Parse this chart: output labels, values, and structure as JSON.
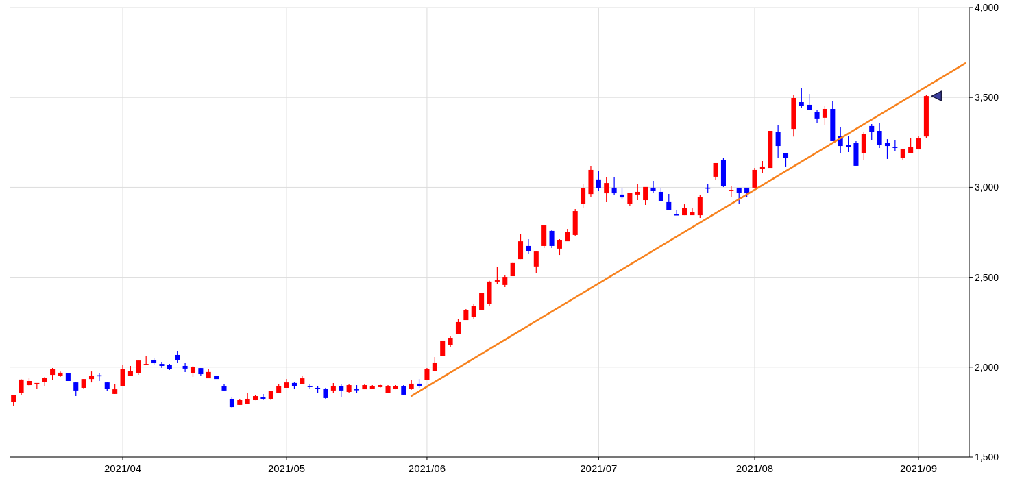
{
  "chart_data": {
    "type": "candlestick",
    "categories": [
      null,
      null,
      null,
      null,
      null,
      null,
      null,
      null,
      null,
      null,
      null,
      null,
      null,
      null,
      "2021/04",
      null,
      null,
      null,
      null,
      null,
      null,
      null,
      null,
      null,
      null,
      null,
      null,
      null,
      null,
      null,
      null,
      null,
      null,
      null,
      null,
      "2021/05",
      null,
      null,
      null,
      null,
      null,
      null,
      null,
      null,
      null,
      null,
      null,
      null,
      null,
      null,
      null,
      null,
      null,
      "2021/06",
      null,
      null,
      null,
      null,
      null,
      null,
      null,
      null,
      null,
      null,
      null,
      null,
      null,
      null,
      null,
      null,
      null,
      null,
      null,
      null,
      null,
      "2021/07",
      null,
      null,
      null,
      null,
      null,
      null,
      null,
      null,
      null,
      null,
      null,
      null,
      null,
      null,
      null,
      null,
      null,
      null,
      null,
      "2021/08",
      null,
      null,
      null,
      null,
      null,
      null,
      null,
      null,
      null,
      null,
      null,
      null,
      null,
      null,
      null,
      null,
      null,
      null,
      null,
      null,
      "2021/09",
      null,
      null,
      null,
      null,
      null,
      null
    ],
    "ohlc": [
      [
        1805,
        1845,
        1782,
        1843
      ],
      [
        1858,
        1933,
        1843,
        1931
      ],
      [
        1900,
        1938,
        1892,
        1923
      ],
      [
        1904,
        1912,
        1881,
        1912
      ],
      [
        1919,
        1946,
        1896,
        1942
      ],
      [
        1957,
        1995,
        1931,
        1988
      ],
      [
        1953,
        1975,
        1946,
        1969
      ],
      [
        1965,
        1969,
        1923,
        1923
      ],
      [
        1915,
        1915,
        1839,
        1870
      ],
      [
        1885,
        1934,
        1881,
        1934
      ],
      [
        1934,
        1976,
        1915,
        1950
      ],
      [
        1955,
        1969,
        1923,
        1950
      ],
      [
        1915,
        1919,
        1870,
        1881
      ],
      [
        1851,
        1904,
        1851,
        1877
      ],
      [
        1893,
        2011,
        1893,
        1988
      ],
      [
        1950,
        2007,
        1950,
        1980
      ],
      [
        1965,
        2037,
        1957,
        2037
      ],
      [
        2011,
        2060,
        2011,
        2018
      ],
      [
        2041,
        2052,
        2011,
        2022
      ],
      [
        2018,
        2030,
        1995,
        2007
      ],
      [
        2011,
        2018,
        1984,
        1988
      ],
      [
        2068,
        2091,
        2026,
        2041
      ],
      [
        2007,
        2026,
        1973,
        1992
      ],
      [
        1965,
        2007,
        1946,
        2003
      ],
      [
        1995,
        1995,
        1953,
        1961
      ],
      [
        1938,
        1991,
        1938,
        1973
      ],
      [
        1950,
        1950,
        1934,
        1934
      ],
      [
        1896,
        1904,
        1870,
        1870
      ],
      [
        1824,
        1835,
        1774,
        1778
      ],
      [
        1790,
        1824,
        1790,
        1820
      ],
      [
        1797,
        1858,
        1797,
        1824
      ],
      [
        1820,
        1843,
        1816,
        1839
      ],
      [
        1835,
        1851,
        1820,
        1824
      ],
      [
        1824,
        1866,
        1820,
        1866
      ],
      [
        1858,
        1904,
        1858,
        1893
      ],
      [
        1885,
        1934,
        1885,
        1915
      ],
      [
        1912,
        1915,
        1881,
        1893
      ],
      [
        1904,
        1953,
        1904,
        1938
      ],
      [
        1896,
        1908,
        1877,
        1889
      ],
      [
        1885,
        1896,
        1858,
        1881
      ],
      [
        1881,
        1885,
        1824,
        1828
      ],
      [
        1870,
        1912,
        1858,
        1896
      ],
      [
        1896,
        1908,
        1832,
        1870
      ],
      [
        1862,
        1908,
        1858,
        1900
      ],
      [
        1877,
        1900,
        1855,
        1874
      ],
      [
        1877,
        1904,
        1877,
        1900
      ],
      [
        1881,
        1900,
        1877,
        1893
      ],
      [
        1889,
        1908,
        1885,
        1900
      ],
      [
        1858,
        1900,
        1855,
        1896
      ],
      [
        1881,
        1900,
        1877,
        1896
      ],
      [
        1896,
        1900,
        1847,
        1847
      ],
      [
        1881,
        1931,
        1874,
        1908
      ],
      [
        1908,
        1934,
        1885,
        1896
      ],
      [
        1927,
        1995,
        1927,
        1991
      ],
      [
        1980,
        2056,
        1976,
        2026
      ],
      [
        2064,
        2148,
        2064,
        2148
      ],
      [
        2125,
        2171,
        2110,
        2163
      ],
      [
        2186,
        2266,
        2186,
        2251
      ],
      [
        2262,
        2323,
        2262,
        2316
      ],
      [
        2281,
        2354,
        2270,
        2342
      ],
      [
        2319,
        2411,
        2319,
        2411
      ],
      [
        2350,
        2480,
        2338,
        2476
      ],
      [
        2476,
        2556,
        2460,
        2483
      ],
      [
        2457,
        2514,
        2445,
        2502
      ],
      [
        2506,
        2579,
        2506,
        2579
      ],
      [
        2601,
        2739,
        2601,
        2700
      ],
      [
        2674,
        2712,
        2632,
        2647
      ],
      [
        2560,
        2643,
        2525,
        2643
      ],
      [
        2674,
        2788,
        2662,
        2788
      ],
      [
        2758,
        2762,
        2662,
        2674
      ],
      [
        2659,
        2712,
        2624,
        2708
      ],
      [
        2700,
        2769,
        2700,
        2750
      ],
      [
        2735,
        2880,
        2731,
        2868
      ],
      [
        2910,
        3021,
        2887,
        2994
      ],
      [
        2963,
        3120,
        2948,
        3097
      ],
      [
        3044,
        3089,
        2982,
        2994
      ],
      [
        2967,
        3059,
        2918,
        3024
      ],
      [
        2998,
        3055,
        2956,
        2967
      ],
      [
        2960,
        2998,
        2933,
        2944
      ],
      [
        2910,
        2971,
        2899,
        2971
      ],
      [
        2960,
        3021,
        2929,
        2975
      ],
      [
        2929,
        3002,
        2902,
        3002
      ],
      [
        2998,
        3036,
        2967,
        2979
      ],
      [
        2975,
        2994,
        2922,
        2922
      ],
      [
        2918,
        2963,
        2872,
        2872
      ],
      [
        2849,
        2872,
        2845,
        2845
      ],
      [
        2845,
        2906,
        2845,
        2887
      ],
      [
        2845,
        2887,
        2845,
        2861
      ],
      [
        2845,
        2956,
        2830,
        2948
      ],
      [
        2998,
        3021,
        2967,
        2994
      ],
      [
        3059,
        3135,
        3040,
        3135
      ],
      [
        3154,
        3162,
        3002,
        3009
      ],
      [
        2982,
        3005,
        2944,
        2986
      ],
      [
        2998,
        2998,
        2910,
        2971
      ],
      [
        2998,
        2998,
        2944,
        2967
      ],
      [
        2998,
        3108,
        2998,
        3097
      ],
      [
        3101,
        3146,
        3078,
        3116
      ],
      [
        3108,
        3314,
        3108,
        3314
      ],
      [
        3310,
        3348,
        3165,
        3230
      ],
      [
        3192,
        3192,
        3116,
        3165
      ],
      [
        3325,
        3516,
        3283,
        3497
      ],
      [
        3474,
        3554,
        3444,
        3455
      ],
      [
        3459,
        3520,
        3432,
        3432
      ],
      [
        3417,
        3432,
        3360,
        3383
      ],
      [
        3387,
        3455,
        3345,
        3436
      ],
      [
        3436,
        3482,
        3257,
        3257
      ],
      [
        3287,
        3333,
        3188,
        3230
      ],
      [
        3234,
        3287,
        3196,
        3226
      ],
      [
        3249,
        3257,
        3120,
        3120
      ],
      [
        3192,
        3306,
        3154,
        3295
      ],
      [
        3341,
        3352,
        3261,
        3310
      ],
      [
        3314,
        3356,
        3219,
        3234
      ],
      [
        3249,
        3268,
        3158,
        3230
      ],
      [
        3226,
        3264,
        3203,
        3219
      ],
      [
        3165,
        3215,
        3154,
        3215
      ],
      [
        3192,
        3272,
        3192,
        3226
      ],
      [
        3211,
        3287,
        3211,
        3272
      ],
      [
        3283,
        3516,
        3276,
        3508
      ],
      null,
      null,
      null,
      null,
      null
    ],
    "colors": [
      "#ff0000",
      "#ff0000",
      "#ff0000",
      "#ff0000",
      "#ff0000",
      "#ff0000",
      "#ff0000",
      "#0000ff",
      "#0000ff",
      "#ff0000",
      "#ff0000",
      "#0000ff",
      "#0000ff",
      "#ff0000",
      "#ff0000",
      "#ff0000",
      "#ff0000",
      "#ff0000",
      "#0000ff",
      "#0000ff",
      "#0000ff",
      "#0000ff",
      "#0000ff",
      "#ff0000",
      "#0000ff",
      "#ff0000",
      "#0000ff",
      "#0000ff",
      "#0000ff",
      "#ff0000",
      "#ff0000",
      "#ff0000",
      "#0000ff",
      "#ff0000",
      "#ff0000",
      "#ff0000",
      "#0000ff",
      "#ff0000",
      "#0000ff",
      "#0000ff",
      "#0000ff",
      "#ff0000",
      "#0000ff",
      "#ff0000",
      "#0000ff",
      "#ff0000",
      "#ff0000",
      "#ff0000",
      "#ff0000",
      "#ff0000",
      "#0000ff",
      "#ff0000",
      "#0000ff",
      "#ff0000",
      "#ff0000",
      "#ff0000",
      "#ff0000",
      "#ff0000",
      "#ff0000",
      "#ff0000",
      "#ff0000",
      "#ff0000",
      "#ff0000",
      "#ff0000",
      "#ff0000",
      "#ff0000",
      "#0000ff",
      "#ff0000",
      "#ff0000",
      "#0000ff",
      "#ff0000",
      "#ff0000",
      "#ff0000",
      "#ff0000",
      "#ff0000",
      "#0000ff",
      "#ff0000",
      "#0000ff",
      "#0000ff",
      "#ff0000",
      "#ff0000",
      "#ff0000",
      "#0000ff",
      "#0000ff",
      "#0000ff",
      "#0000ff",
      "#ff0000",
      "#ff0000",
      "#ff0000",
      "#0000ff",
      "#ff0000",
      "#0000ff",
      "#ff0000",
      "#0000ff",
      "#0000ff",
      "#ff0000",
      "#ff0000",
      "#ff0000",
      "#0000ff",
      "#0000ff",
      "#ff0000",
      "#0000ff",
      "#0000ff",
      "#0000ff",
      "#ff0000",
      "#0000ff",
      "#0000ff",
      "#0000ff",
      "#0000ff",
      "#ff0000",
      "#0000ff",
      "#0000ff",
      "#0000ff",
      "#0000ff",
      "#ff0000",
      "#ff0000",
      "#ff0000",
      "#ff0000",
      null,
      null,
      null,
      null,
      null
    ],
    "series": [
      {
        "type": "line",
        "values": [
          null,
          null,
          null,
          null,
          null,
          null,
          null,
          null,
          null,
          null,
          null,
          null,
          null,
          null,
          null,
          null,
          null,
          null,
          null,
          null,
          null,
          null,
          null,
          null,
          null,
          null,
          null,
          null,
          null,
          null,
          null,
          null,
          null,
          null,
          null,
          null,
          null,
          null,
          null,
          null,
          null,
          null,
          null,
          null,
          null,
          null,
          null,
          null,
          null,
          null,
          null,
          1840,
          null,
          null,
          null,
          null,
          null,
          null,
          null,
          null,
          null,
          null,
          null,
          null,
          null,
          null,
          null,
          null,
          null,
          null,
          null,
          null,
          null,
          null,
          null,
          null,
          null,
          null,
          null,
          null,
          null,
          null,
          null,
          null,
          null,
          null,
          null,
          null,
          null,
          null,
          null,
          null,
          null,
          null,
          null,
          null,
          null,
          null,
          null,
          null,
          null,
          null,
          null,
          null,
          null,
          null,
          null,
          null,
          null,
          null,
          null,
          null,
          null,
          null,
          null,
          null,
          null,
          null,
          null,
          null,
          null,
          null,
          3690
        ],
        "color": "#f7821e"
      }
    ],
    "ylim": [
      1500,
      4000
    ],
    "yticks": [
      {
        "value": 1500,
        "label": "1,500"
      },
      {
        "value": 2000,
        "label": "2,000"
      },
      {
        "value": 2500,
        "label": "2,500"
      },
      {
        "value": 3000,
        "label": "3,000"
      },
      {
        "value": 3500,
        "label": "3,500"
      },
      {
        "value": 4000,
        "label": "4,000"
      }
    ],
    "grid": true
  }
}
